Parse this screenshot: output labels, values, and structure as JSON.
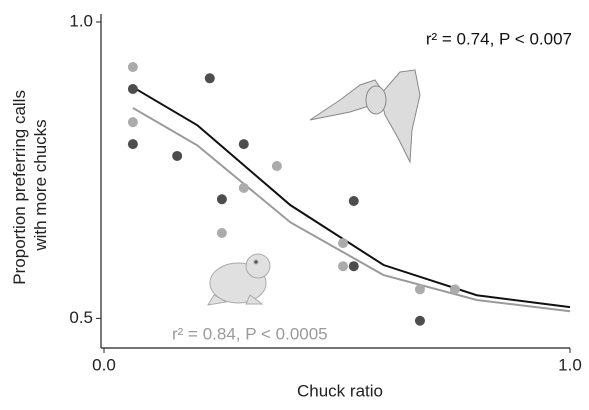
{
  "chart_data": {
    "type": "scatter",
    "xlabel": "Chuck ratio",
    "ylabel": [
      "Proportion preferring calls",
      "with more chucks"
    ],
    "xlim": [
      0,
      1.0
    ],
    "ylim": [
      0.45,
      1.0
    ],
    "xticks": [
      {
        "value": 0,
        "label": "0.0"
      },
      {
        "value": 1.0,
        "label": "1.0"
      }
    ],
    "yticks": [
      {
        "value": 0.5,
        "label": "0.5"
      },
      {
        "value": 1.0,
        "label": "1.0"
      }
    ],
    "series": [
      {
        "color": "#4d4d4d",
        "x": [
          0.062,
          0.062,
          0.157,
          0.227,
          0.3,
          0.253,
          0.536,
          0.536,
          0.678
        ],
        "values": [
          0.887,
          0.794,
          0.774,
          0.905,
          0.794,
          0.701,
          0.698,
          0.588,
          0.496
        ]
      },
      {
        "color": "#ababab",
        "x": [
          0.062,
          0.062,
          0.3,
          0.371,
          0.253,
          0.513,
          0.513,
          0.678,
          0.753
        ],
        "values": [
          0.924,
          0.831,
          0.72,
          0.757,
          0.644,
          0.627,
          0.588,
          0.549,
          0.549
        ]
      }
    ],
    "curves": [
      {
        "color": "#111111",
        "x": [
          0.062,
          0.2,
          0.4,
          0.6,
          0.8,
          1.0
        ],
        "values": [
          0.89,
          0.826,
          0.691,
          0.59,
          0.539,
          0.519
        ]
      },
      {
        "color": "#9a9a9a",
        "x": [
          0.062,
          0.2,
          0.4,
          0.6,
          0.8,
          1.0
        ],
        "values": [
          0.855,
          0.792,
          0.662,
          0.573,
          0.531,
          0.512
        ]
      }
    ],
    "annotations": [
      {
        "text": "r² = 0.74, P < 0.007",
        "color": "#111111"
      },
      {
        "text": "r² = 0.84, P < 0.0005",
        "color": "#9a9a9a"
      }
    ]
  }
}
